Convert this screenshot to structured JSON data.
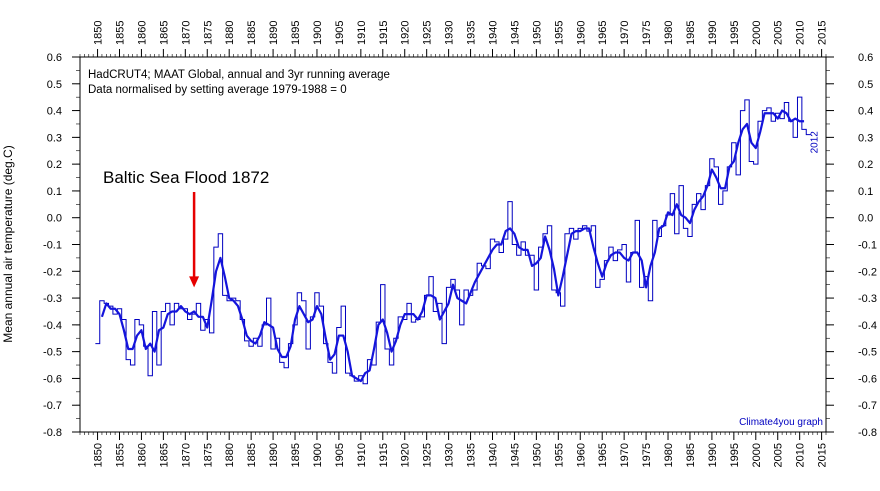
{
  "chart_data": {
    "type": "line",
    "notes": [
      "HadCRUT4; MAAT Global, annual and 3yr running average",
      "Data normalised by setting average 1979-1988 = 0"
    ],
    "annotation": {
      "text": "Baltic Sea Flood 1872",
      "year": 1872,
      "arrow_tip_value": -0.26
    },
    "end_label": "2012",
    "credit": "Climate4you graph",
    "ylabel": "Mean annual air temperature (deg.C)",
    "xlim": [
      1846,
      2016
    ],
    "ylim": [
      -0.8,
      0.6
    ],
    "x_ticks": [
      1850,
      1855,
      1860,
      1865,
      1870,
      1875,
      1880,
      1885,
      1890,
      1895,
      1900,
      1905,
      1910,
      1915,
      1920,
      1925,
      1930,
      1935,
      1940,
      1945,
      1950,
      1955,
      1960,
      1965,
      1970,
      1975,
      1980,
      1985,
      1990,
      1995,
      2000,
      2005,
      2010,
      2015
    ],
    "y_ticks": [
      0.6,
      0.5,
      0.4,
      0.3,
      0.2,
      0.1,
      0.0,
      -0.1,
      -0.2,
      -0.3,
      -0.4,
      -0.5,
      -0.6,
      -0.7,
      -0.8
    ],
    "y_tick_labels": [
      "0.6",
      "0.5",
      "0.4",
      "0.3",
      "0.2",
      "0.1",
      "0.0",
      "-0.1",
      "-0.2",
      "-0.3",
      "-0.4",
      "-0.5",
      "-0.6",
      "-0.7",
      "-0.8"
    ],
    "colors": {
      "annual": "#0000c0",
      "running": "#1414dc",
      "arrow": "#e60000",
      "credit": "#0000c0"
    },
    "series": [
      {
        "kind": "annual",
        "style": "step",
        "x": [
          1850,
          1851,
          1852,
          1853,
          1854,
          1855,
          1856,
          1857,
          1858,
          1859,
          1860,
          1861,
          1862,
          1863,
          1864,
          1865,
          1866,
          1867,
          1868,
          1869,
          1870,
          1871,
          1872,
          1873,
          1874,
          1875,
          1876,
          1877,
          1878,
          1879,
          1880,
          1881,
          1882,
          1883,
          1884,
          1885,
          1886,
          1887,
          1888,
          1889,
          1890,
          1891,
          1892,
          1893,
          1894,
          1895,
          1896,
          1897,
          1898,
          1899,
          1900,
          1901,
          1902,
          1903,
          1904,
          1905,
          1906,
          1907,
          1908,
          1909,
          1910,
          1911,
          1912,
          1913,
          1914,
          1915,
          1916,
          1917,
          1918,
          1919,
          1920,
          1921,
          1922,
          1923,
          1924,
          1925,
          1926,
          1927,
          1928,
          1929,
          1930,
          1931,
          1932,
          1933,
          1934,
          1935,
          1936,
          1937,
          1938,
          1939,
          1940,
          1941,
          1942,
          1943,
          1944,
          1945,
          1946,
          1947,
          1948,
          1949,
          1950,
          1951,
          1952,
          1953,
          1954,
          1955,
          1956,
          1957,
          1958,
          1959,
          1960,
          1961,
          1962,
          1963,
          1964,
          1965,
          1966,
          1967,
          1968,
          1969,
          1970,
          1971,
          1972,
          1973,
          1974,
          1975,
          1976,
          1977,
          1978,
          1979,
          1980,
          1981,
          1982,
          1983,
          1984,
          1985,
          1986,
          1987,
          1988,
          1989,
          1990,
          1991,
          1992,
          1993,
          1994,
          1995,
          1996,
          1997,
          1998,
          1999,
          2000,
          2001,
          2002,
          2003,
          2004,
          2005,
          2006,
          2007,
          2008,
          2009,
          2010,
          2011,
          2012
        ],
        "y": [
          -0.47,
          -0.31,
          -0.32,
          -0.33,
          -0.36,
          -0.34,
          -0.38,
          -0.53,
          -0.55,
          -0.38,
          -0.4,
          -0.48,
          -0.59,
          -0.35,
          -0.55,
          -0.35,
          -0.32,
          -0.4,
          -0.32,
          -0.34,
          -0.34,
          -0.38,
          -0.36,
          -0.32,
          -0.42,
          -0.38,
          -0.43,
          -0.11,
          -0.06,
          -0.29,
          -0.31,
          -0.3,
          -0.31,
          -0.38,
          -0.46,
          -0.48,
          -0.45,
          -0.48,
          -0.4,
          -0.3,
          -0.49,
          -0.45,
          -0.54,
          -0.56,
          -0.47,
          -0.4,
          -0.28,
          -0.31,
          -0.49,
          -0.37,
          -0.28,
          -0.33,
          -0.47,
          -0.54,
          -0.58,
          -0.41,
          -0.33,
          -0.58,
          -0.59,
          -0.61,
          -0.59,
          -0.62,
          -0.53,
          -0.55,
          -0.39,
          -0.25,
          -0.49,
          -0.55,
          -0.45,
          -0.37,
          -0.38,
          -0.32,
          -0.39,
          -0.38,
          -0.37,
          -0.29,
          -0.22,
          -0.35,
          -0.32,
          -0.47,
          -0.26,
          -0.23,
          -0.27,
          -0.4,
          -0.27,
          -0.29,
          -0.27,
          -0.17,
          -0.18,
          -0.19,
          -0.08,
          -0.09,
          -0.13,
          -0.08,
          0.06,
          -0.1,
          -0.14,
          -0.09,
          -0.14,
          -0.14,
          -0.27,
          -0.11,
          -0.06,
          -0.03,
          -0.27,
          -0.28,
          -0.33,
          -0.06,
          -0.04,
          -0.08,
          -0.04,
          -0.03,
          -0.05,
          -0.03,
          -0.26,
          -0.23,
          -0.16,
          -0.11,
          -0.16,
          -0.12,
          -0.1,
          -0.24,
          -0.13,
          -0.01,
          -0.26,
          -0.22,
          -0.31,
          -0.01,
          -0.07,
          -0.03,
          0.01,
          0.09,
          -0.06,
          0.12,
          -0.04,
          -0.07,
          0.05,
          0.09,
          0.03,
          0.12,
          0.22,
          0.19,
          0.05,
          0.1,
          0.19,
          0.28,
          0.16,
          0.4,
          0.44,
          0.21,
          0.2,
          0.36,
          0.4,
          0.41,
          0.36,
          0.39,
          0.37,
          0.43,
          0.36,
          0.3,
          0.45,
          0.33,
          0.31
        ]
      },
      {
        "kind": "running",
        "style": "line",
        "x": [
          1851,
          1852,
          1853,
          1854,
          1855,
          1856,
          1857,
          1858,
          1859,
          1860,
          1861,
          1862,
          1863,
          1864,
          1865,
          1866,
          1867,
          1868,
          1869,
          1870,
          1871,
          1872,
          1873,
          1874,
          1875,
          1876,
          1877,
          1878,
          1879,
          1880,
          1881,
          1882,
          1883,
          1884,
          1885,
          1886,
          1887,
          1888,
          1889,
          1890,
          1891,
          1892,
          1893,
          1894,
          1895,
          1896,
          1897,
          1898,
          1899,
          1900,
          1901,
          1902,
          1903,
          1904,
          1905,
          1906,
          1907,
          1908,
          1909,
          1910,
          1911,
          1912,
          1913,
          1914,
          1915,
          1916,
          1917,
          1918,
          1919,
          1920,
          1921,
          1922,
          1923,
          1924,
          1925,
          1926,
          1927,
          1928,
          1929,
          1930,
          1931,
          1932,
          1933,
          1934,
          1935,
          1936,
          1937,
          1938,
          1939,
          1940,
          1941,
          1942,
          1943,
          1944,
          1945,
          1946,
          1947,
          1948,
          1949,
          1950,
          1951,
          1952,
          1953,
          1954,
          1955,
          1956,
          1957,
          1958,
          1959,
          1960,
          1961,
          1962,
          1963,
          1964,
          1965,
          1966,
          1967,
          1968,
          1969,
          1970,
          1971,
          1972,
          1973,
          1974,
          1975,
          1976,
          1977,
          1978,
          1979,
          1980,
          1981,
          1982,
          1983,
          1984,
          1985,
          1986,
          1987,
          1988,
          1989,
          1990,
          1991,
          1992,
          1993,
          1994,
          1995,
          1996,
          1997,
          1998,
          1999,
          2000,
          2001,
          2002,
          2003,
          2004,
          2005,
          2006,
          2007,
          2008,
          2009,
          2010,
          2011
        ],
        "y": [
          -0.37,
          -0.32,
          -0.34,
          -0.34,
          -0.36,
          -0.42,
          -0.49,
          -0.49,
          -0.44,
          -0.42,
          -0.49,
          -0.47,
          -0.5,
          -0.42,
          -0.41,
          -0.36,
          -0.35,
          -0.35,
          -0.33,
          -0.35,
          -0.36,
          -0.35,
          -0.37,
          -0.37,
          -0.41,
          -0.31,
          -0.2,
          -0.15,
          -0.22,
          -0.3,
          -0.31,
          -0.33,
          -0.38,
          -0.44,
          -0.46,
          -0.47,
          -0.44,
          -0.39,
          -0.4,
          -0.41,
          -0.49,
          -0.52,
          -0.52,
          -0.48,
          -0.38,
          -0.33,
          -0.36,
          -0.39,
          -0.38,
          -0.33,
          -0.36,
          -0.45,
          -0.53,
          -0.51,
          -0.44,
          -0.44,
          -0.5,
          -0.59,
          -0.6,
          -0.61,
          -0.58,
          -0.57,
          -0.49,
          -0.4,
          -0.38,
          -0.43,
          -0.5,
          -0.46,
          -0.4,
          -0.36,
          -0.36,
          -0.36,
          -0.38,
          -0.35,
          -0.29,
          -0.29,
          -0.3,
          -0.38,
          -0.35,
          -0.32,
          -0.25,
          -0.3,
          -0.31,
          -0.32,
          -0.28,
          -0.24,
          -0.21,
          -0.18,
          -0.15,
          -0.12,
          -0.1,
          -0.1,
          -0.05,
          -0.04,
          -0.06,
          -0.11,
          -0.12,
          -0.12,
          -0.18,
          -0.17,
          -0.15,
          -0.07,
          -0.12,
          -0.19,
          -0.29,
          -0.22,
          -0.14,
          -0.06,
          -0.05,
          -0.05,
          -0.04,
          -0.04,
          -0.11,
          -0.17,
          -0.22,
          -0.17,
          -0.14,
          -0.13,
          -0.13,
          -0.15,
          -0.16,
          -0.13,
          -0.13,
          -0.16,
          -0.26,
          -0.18,
          -0.13,
          -0.04,
          -0.03,
          0.02,
          0.01,
          0.05,
          0.01,
          0.0,
          -0.02,
          0.03,
          0.06,
          0.08,
          0.12,
          0.18,
          0.15,
          0.11,
          0.11,
          0.19,
          0.21,
          0.28,
          0.33,
          0.35,
          0.28,
          0.26,
          0.32,
          0.39,
          0.39,
          0.39,
          0.37,
          0.4,
          0.39,
          0.36,
          0.37,
          0.36,
          0.36
        ]
      }
    ]
  }
}
